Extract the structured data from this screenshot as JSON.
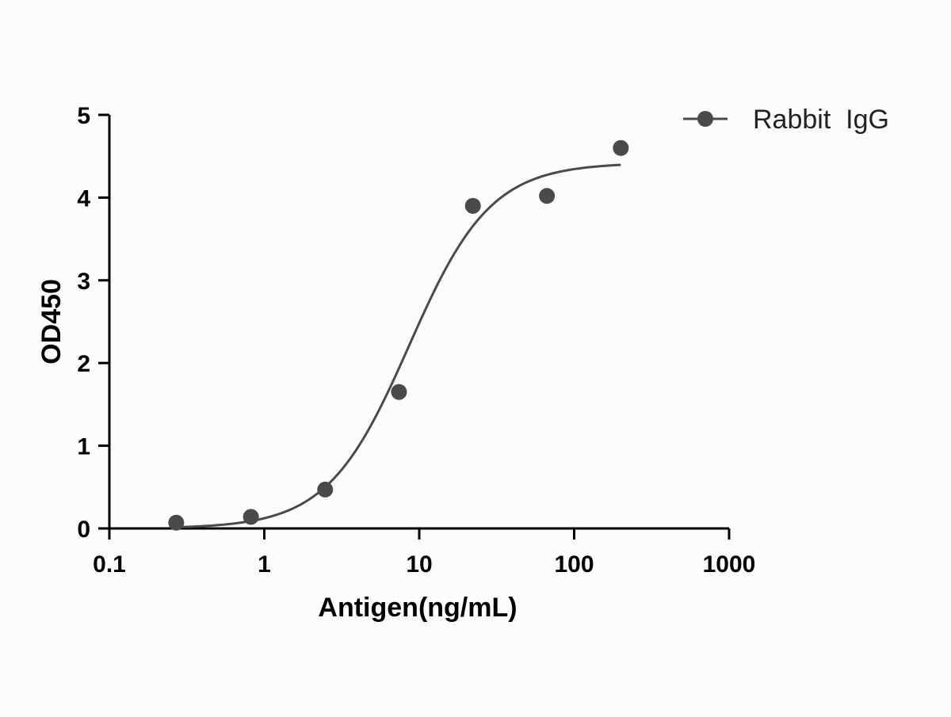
{
  "chart_data": {
    "type": "scatter",
    "xscale": "log",
    "xlabel": "Antigen(ng/mL)",
    "ylabel": "OD450",
    "xlim": [
      0.1,
      1000
    ],
    "ylim": [
      0,
      5
    ],
    "xticks": [
      0.1,
      1,
      10,
      100,
      1000
    ],
    "xtick_labels": [
      "0.1",
      "1",
      "10",
      "100",
      "1000"
    ],
    "yticks": [
      0,
      1,
      2,
      3,
      4,
      5
    ],
    "ytick_labels": [
      "0",
      "1",
      "2",
      "3",
      "4",
      "5"
    ],
    "legend_position": "top-right",
    "grid": false,
    "series": [
      {
        "name": "Rabbit  IgG",
        "color": "#4a4a4a",
        "marker": "circle",
        "points": [
          {
            "x": 0.27,
            "y": 0.07
          },
          {
            "x": 0.82,
            "y": 0.14
          },
          {
            "x": 2.47,
            "y": 0.47
          },
          {
            "x": 7.4,
            "y": 1.65
          },
          {
            "x": 22.2,
            "y": 3.9
          },
          {
            "x": 66.7,
            "y": 4.02
          },
          {
            "x": 200,
            "y": 4.6
          }
        ],
        "fit_curve": {
          "type": "4PL",
          "bottom": 0.0,
          "top": 4.42,
          "ec50": 8.6,
          "hill": 1.65,
          "x_range": [
            0.27,
            200
          ]
        }
      }
    ]
  }
}
